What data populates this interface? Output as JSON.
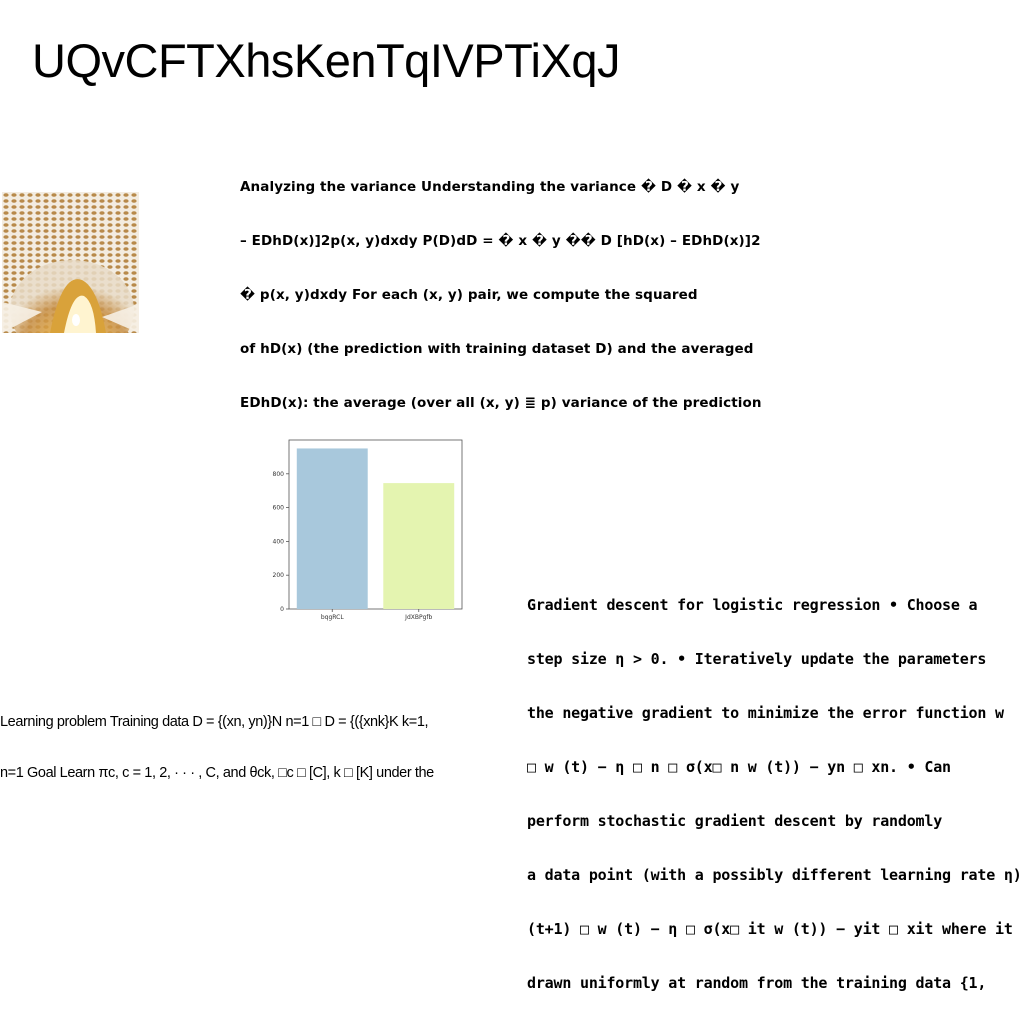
{
  "slide": {
    "title": "UQvCFTXhsKenTqIVPTiXqJ"
  },
  "block_a": {
    "lines": [
      "Analyzing the variance Understanding the variance � D � x � y",
      "– EDhD(x)]2p(x, y)dxdy P(D)dD = � x � y �� D [hD(x) – EDhD(x)]2",
      "� p(x, y)dxdy For each (x, y) pair, we compute the squared",
      "of hD(x) (the prediction with training dataset D) and the averaged",
      "EDhD(x): the average (over all (x, y) ≣ p) variance of the prediction"
    ]
  },
  "block_b": {
    "lines": [
      "Gradient descent for logistic regression • Choose a",
      "step size η > 0. • Iteratively update the parameters",
      "the negative gradient to minimize the error function w",
      "□ w (t) − η □ n □ σ(x□ n w (t)) − yn □ xn. • Can",
      "perform stochastic gradient descent by randomly",
      "a data point (with a possibly different learning rate η)",
      "(t+1) □ w (t) − η □ σ(x□ it w (t)) − yit □ xit where it",
      "drawn uniformly at random from the training data {1,"
    ]
  },
  "block_c": {
    "lines": [
      "Learning problem Training data D = {(xn, yn)}N n=1 □ D = {({xnk}K k=1,",
      "n=1 Goal Learn πc, c = 1, 2, · · · , C, and θck, □c □ [C], k □ [K] under the"
    ]
  },
  "photo": {
    "icon": "architectural-lattice-photo"
  },
  "chart_data": {
    "type": "bar",
    "categories": [
      "bqgRCL",
      "JdXBPgfb"
    ],
    "values": [
      950,
      745
    ],
    "ylim": [
      0,
      1000
    ],
    "yticks": [
      0,
      200,
      400,
      600,
      800
    ],
    "title": "",
    "xlabel": "",
    "ylabel": "",
    "colors": [
      "#a8c8dc",
      "#e4f4b0"
    ]
  }
}
